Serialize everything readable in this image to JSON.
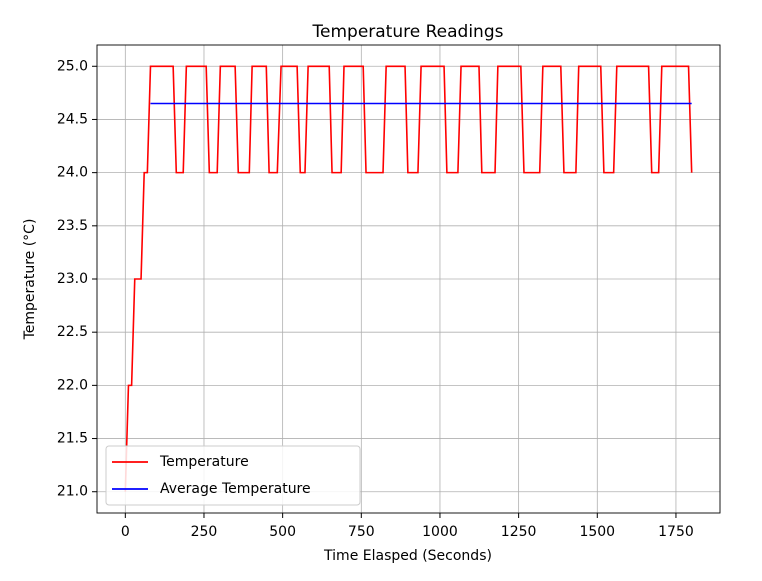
{
  "chart_data": {
    "type": "line",
    "title": "Temperature Readings",
    "xlabel": "Time Elasped (Seconds)",
    "ylabel": "Temperature (°C)",
    "xlim": [
      -90,
      1890
    ],
    "ylim": [
      20.8,
      25.2
    ],
    "xticks": [
      0,
      250,
      500,
      750,
      1000,
      1250,
      1500,
      1750
    ],
    "yticks": [
      {
        "value": 21,
        "label": "21.0"
      },
      21.5,
      {
        "value": 22,
        "label": "22.0"
      },
      22.5,
      {
        "value": 23,
        "label": "23.0"
      },
      23.5,
      {
        "value": 24,
        "label": "24.0"
      },
      24.5,
      {
        "value": 25,
        "label": "25.0"
      }
    ],
    "grid": true,
    "legend": "lower left",
    "series": [
      {
        "name": "Temperature",
        "color": "#ff0000",
        "x": [
          0,
          10,
          20,
          30,
          50,
          60,
          70,
          80,
          152,
          162,
          184,
          194,
          257,
          267,
          292,
          302,
          349,
          359,
          394,
          403,
          448,
          457,
          483,
          495,
          546,
          556,
          571,
          581,
          648,
          657,
          686,
          695,
          756,
          765,
          819,
          829,
          889,
          898,
          930,
          940,
          1013,
          1022,
          1057,
          1067,
          1124,
          1133,
          1175,
          1184,
          1257,
          1267,
          1317,
          1327,
          1384,
          1394,
          1432,
          1441,
          1511,
          1521,
          1552,
          1562,
          1663,
          1673,
          1695,
          1705,
          1790,
          1800
        ],
        "values": [
          21,
          22,
          22,
          23,
          23,
          24,
          24,
          25,
          25,
          24,
          24,
          25,
          25,
          24,
          24,
          25,
          25,
          24,
          24,
          25,
          25,
          24,
          24,
          25,
          25,
          24,
          24,
          25,
          25,
          24,
          24,
          25,
          25,
          24,
          24,
          25,
          25,
          24,
          24,
          25,
          25,
          24,
          24,
          25,
          25,
          24,
          24,
          25,
          25,
          24,
          24,
          25,
          25,
          24,
          24,
          25,
          25,
          24,
          24,
          25,
          25,
          24,
          24,
          25,
          25,
          24
        ]
      },
      {
        "name": "Average Temperature",
        "color": "#0000ff",
        "x": [
          80,
          1800
        ],
        "values": [
          24.65,
          24.65
        ]
      }
    ]
  }
}
